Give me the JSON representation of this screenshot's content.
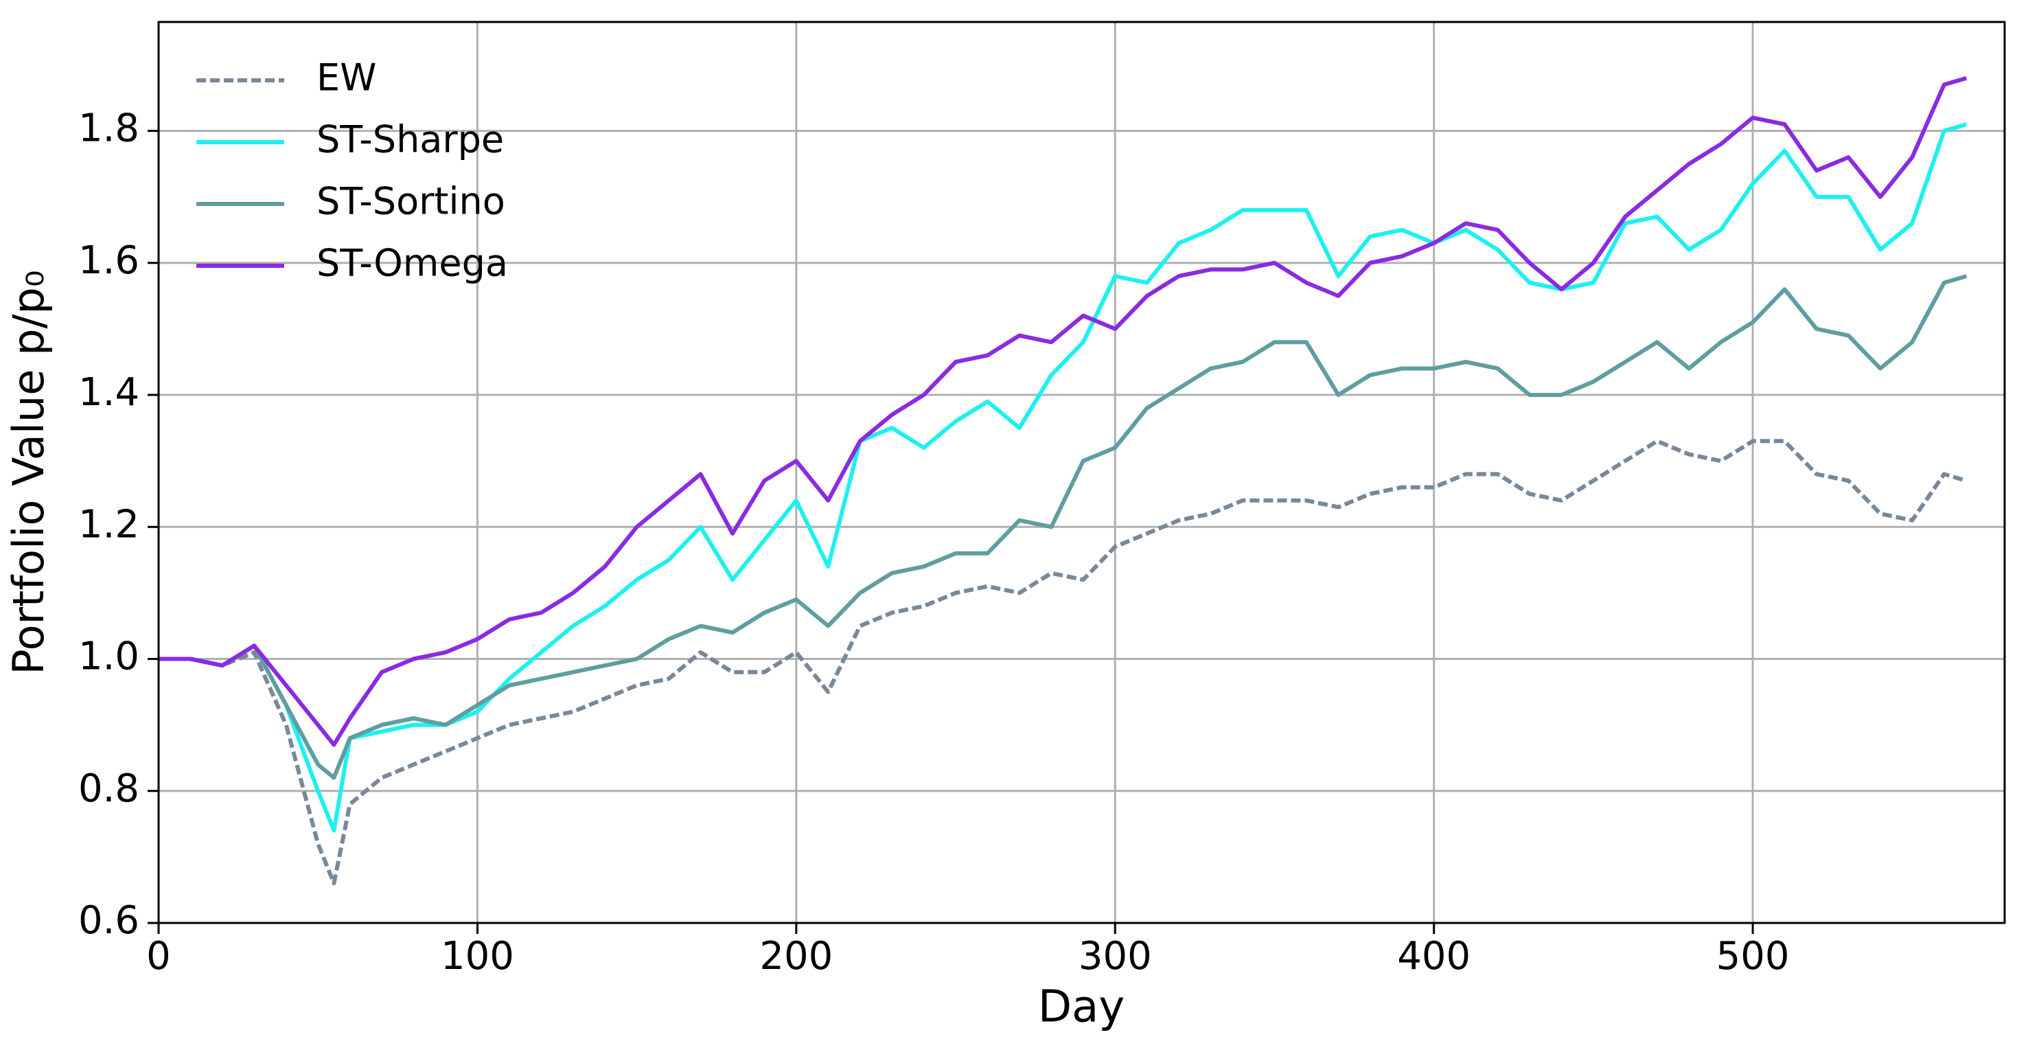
{
  "chart_data": {
    "type": "line",
    "xlabel": "Day",
    "ylabel": "Portfolio Value p/p₀",
    "x": [
      0,
      10,
      20,
      30,
      40,
      50,
      55,
      60,
      70,
      80,
      90,
      100,
      110,
      120,
      130,
      140,
      150,
      160,
      170,
      180,
      190,
      200,
      210,
      220,
      230,
      240,
      250,
      260,
      270,
      280,
      290,
      300,
      310,
      320,
      330,
      340,
      350,
      360,
      370,
      380,
      390,
      400,
      410,
      420,
      430,
      440,
      450,
      460,
      470,
      480,
      490,
      500,
      510,
      520,
      530,
      540,
      550,
      560,
      567
    ],
    "series": [
      {
        "name": "EW",
        "color": "#778899",
        "dashed": true,
        "values": [
          1.0,
          1.0,
          0.99,
          1.01,
          0.9,
          0.72,
          0.66,
          0.78,
          0.82,
          0.84,
          0.86,
          0.88,
          0.9,
          0.91,
          0.92,
          0.94,
          0.96,
          0.97,
          1.01,
          0.98,
          0.98,
          1.01,
          0.95,
          1.05,
          1.07,
          1.08,
          1.1,
          1.11,
          1.1,
          1.13,
          1.12,
          1.17,
          1.19,
          1.21,
          1.22,
          1.24,
          1.24,
          1.24,
          1.23,
          1.25,
          1.26,
          1.26,
          1.28,
          1.28,
          1.25,
          1.24,
          1.27,
          1.3,
          1.33,
          1.31,
          1.3,
          1.33,
          1.33,
          1.28,
          1.27,
          1.22,
          1.21,
          1.28,
          1.27
        ]
      },
      {
        "name": "ST-Sharpe",
        "color": "#1ef0f0",
        "values": [
          1.0,
          1.0,
          0.99,
          1.02,
          0.93,
          0.8,
          0.74,
          0.88,
          0.89,
          0.9,
          0.9,
          0.92,
          0.97,
          1.01,
          1.05,
          1.08,
          1.12,
          1.15,
          1.2,
          1.12,
          1.18,
          1.24,
          1.14,
          1.33,
          1.35,
          1.32,
          1.36,
          1.39,
          1.35,
          1.43,
          1.48,
          1.58,
          1.57,
          1.63,
          1.65,
          1.68,
          1.68,
          1.68,
          1.58,
          1.64,
          1.65,
          1.63,
          1.65,
          1.62,
          1.57,
          1.56,
          1.57,
          1.66,
          1.67,
          1.62,
          1.65,
          1.72,
          1.77,
          1.7,
          1.7,
          1.62,
          1.66,
          1.8,
          1.81
        ]
      },
      {
        "name": "ST-Sortino",
        "color": "#5f9ea0",
        "values": [
          1.0,
          1.0,
          0.99,
          1.02,
          0.93,
          0.84,
          0.82,
          0.88,
          0.9,
          0.91,
          0.9,
          0.93,
          0.96,
          0.97,
          0.98,
          0.99,
          1.0,
          1.03,
          1.05,
          1.04,
          1.07,
          1.09,
          1.05,
          1.1,
          1.13,
          1.14,
          1.16,
          1.16,
          1.21,
          1.2,
          1.3,
          1.32,
          1.38,
          1.41,
          1.44,
          1.45,
          1.48,
          1.48,
          1.4,
          1.43,
          1.44,
          1.44,
          1.45,
          1.44,
          1.4,
          1.4,
          1.42,
          1.45,
          1.48,
          1.44,
          1.48,
          1.51,
          1.56,
          1.5,
          1.49,
          1.44,
          1.48,
          1.57,
          1.58
        ]
      },
      {
        "name": "ST-Omega",
        "color": "#8a2be2",
        "values": [
          1.0,
          1.0,
          0.99,
          1.02,
          0.96,
          0.9,
          0.87,
          0.91,
          0.98,
          1.0,
          1.01,
          1.03,
          1.06,
          1.07,
          1.1,
          1.14,
          1.2,
          1.24,
          1.28,
          1.19,
          1.27,
          1.3,
          1.24,
          1.33,
          1.37,
          1.4,
          1.45,
          1.46,
          1.49,
          1.48,
          1.52,
          1.5,
          1.55,
          1.58,
          1.59,
          1.59,
          1.6,
          1.57,
          1.55,
          1.6,
          1.61,
          1.63,
          1.66,
          1.65,
          1.6,
          1.56,
          1.6,
          1.67,
          1.71,
          1.75,
          1.78,
          1.82,
          1.81,
          1.74,
          1.76,
          1.7,
          1.76,
          1.87,
          1.88
        ]
      }
    ],
    "xlim": [
      0,
      579
    ],
    "ylim": [
      0.6,
      1.965
    ],
    "xticks": [
      0,
      100,
      200,
      300,
      400,
      500
    ],
    "yticks": [
      0.6,
      0.8,
      {
        "value": 1.0,
        "label": "1.0"
      },
      1.2,
      1.4,
      1.6,
      1.8
    ],
    "grid": true,
    "legend": "upper left"
  }
}
